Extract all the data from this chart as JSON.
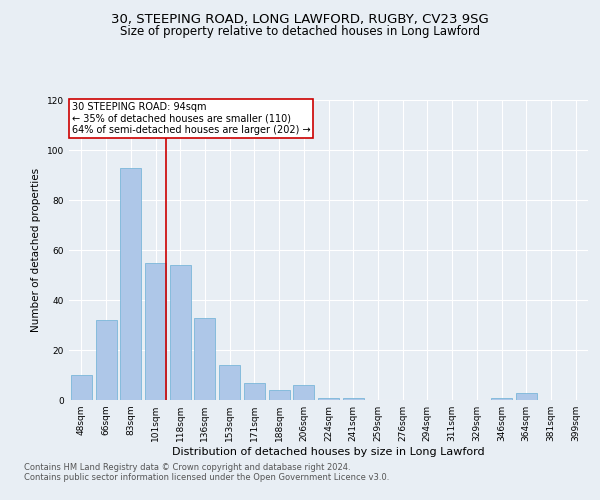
{
  "title1": "30, STEEPING ROAD, LONG LAWFORD, RUGBY, CV23 9SG",
  "title2": "Size of property relative to detached houses in Long Lawford",
  "xlabel": "Distribution of detached houses by size in Long Lawford",
  "ylabel": "Number of detached properties",
  "footnote1": "Contains HM Land Registry data © Crown copyright and database right 2024.",
  "footnote2": "Contains public sector information licensed under the Open Government Licence v3.0.",
  "categories": [
    "48sqm",
    "66sqm",
    "83sqm",
    "101sqm",
    "118sqm",
    "136sqm",
    "153sqm",
    "171sqm",
    "188sqm",
    "206sqm",
    "224sqm",
    "241sqm",
    "259sqm",
    "276sqm",
    "294sqm",
    "311sqm",
    "329sqm",
    "346sqm",
    "364sqm",
    "381sqm",
    "399sqm"
  ],
  "values": [
    10,
    32,
    93,
    55,
    54,
    33,
    14,
    7,
    4,
    6,
    1,
    1,
    0,
    0,
    0,
    0,
    0,
    1,
    3,
    0,
    0
  ],
  "bar_color": "#aec7e8",
  "bar_edge_color": "#6aafd6",
  "red_line_index": 3,
  "annotation_line1": "30 STEEPING ROAD: 94sqm",
  "annotation_line2": "← 35% of detached houses are smaller (110)",
  "annotation_line3": "64% of semi-detached houses are larger (202) →",
  "ylim": [
    0,
    120
  ],
  "yticks": [
    0,
    20,
    40,
    60,
    80,
    100,
    120
  ],
  "background_color": "#e8eef4",
  "plot_bg_color": "#e8eef4",
  "grid_color": "#ffffff",
  "annotation_box_color": "#ffffff",
  "annotation_box_edge_color": "#cc0000",
  "red_line_color": "#cc0000",
  "title1_fontsize": 9.5,
  "title2_fontsize": 8.5,
  "xlabel_fontsize": 8,
  "ylabel_fontsize": 7.5,
  "tick_fontsize": 6.5,
  "annotation_fontsize": 7,
  "footnote_fontsize": 6
}
